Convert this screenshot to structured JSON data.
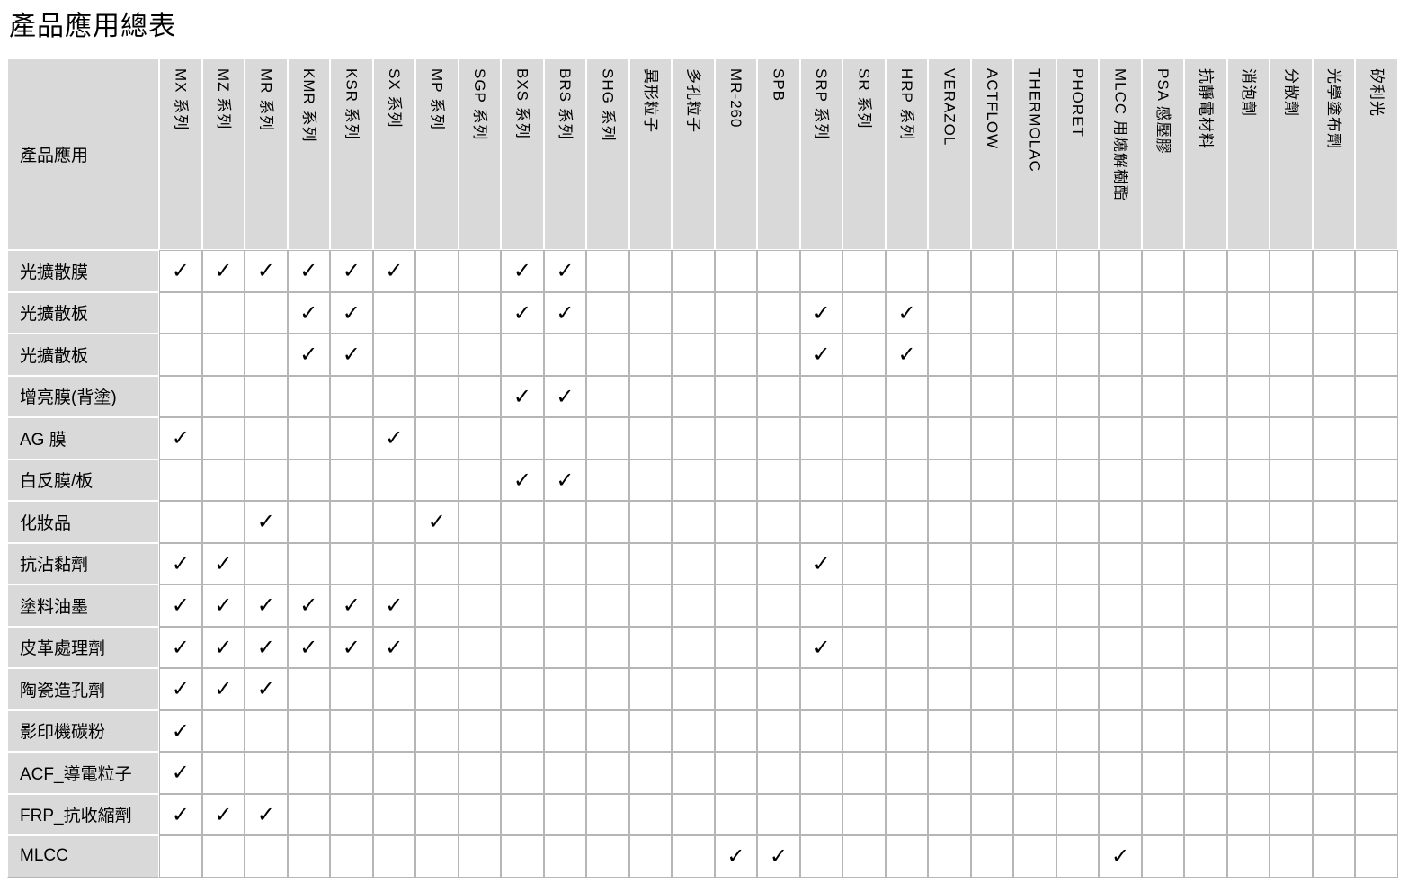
{
  "page": {
    "title": "產品應用總表"
  },
  "colors": {
    "header_bg": "#d9d9d9",
    "grid_border": "#b6b6b6",
    "header_border": "#ffffff",
    "text": "#000000"
  },
  "table": {
    "corner_header": "產品應用",
    "check_glyph": "✓",
    "columns": [
      "MX 系列",
      "MZ 系列",
      "MR 系列",
      "KMR 系列",
      "KSR 系列",
      "SX 系列",
      "MP 系列",
      "SGP 系列",
      "BXS 系列",
      "BRS 系列",
      "SHG 系列",
      "異形粒子",
      "多孔粒子",
      "MR-260",
      "SPB",
      "SRP 系列",
      "SR 系列",
      "HRP 系列",
      "VERAZOL",
      "ACTFLOW",
      "THERMOLAC",
      "PHORET",
      "MLCC 用燒解樹酯",
      "PSA 感壓膠",
      "抗靜電材料",
      "消泡劑",
      "分散劑",
      "光學塗布劑",
      "矽利光"
    ],
    "rows": [
      {
        "label": "光擴散膜",
        "checks": [
          0,
          1,
          2,
          3,
          4,
          5,
          8,
          9
        ]
      },
      {
        "label": "光擴散板",
        "checks": [
          3,
          4,
          8,
          9,
          15,
          17
        ]
      },
      {
        "label": "光擴散板",
        "checks": [
          3,
          4,
          15,
          17
        ]
      },
      {
        "label": "增亮膜(背塗)",
        "checks": [
          8,
          9
        ]
      },
      {
        "label": "AG 膜",
        "checks": [
          0,
          5
        ]
      },
      {
        "label": "白反膜/板",
        "checks": [
          8,
          9
        ]
      },
      {
        "label": "化妝品",
        "checks": [
          2,
          6
        ]
      },
      {
        "label": "抗沾黏劑",
        "checks": [
          0,
          1,
          15
        ]
      },
      {
        "label": "塗料油墨",
        "checks": [
          0,
          1,
          2,
          3,
          4,
          5
        ]
      },
      {
        "label": "皮革處理劑",
        "checks": [
          0,
          1,
          2,
          3,
          4,
          5,
          15
        ]
      },
      {
        "label": "陶瓷造孔劑",
        "checks": [
          0,
          1,
          2
        ]
      },
      {
        "label": "影印機碳粉",
        "checks": [
          0
        ]
      },
      {
        "label": "ACF_導電粒子",
        "checks": [
          0
        ]
      },
      {
        "label": "FRP_抗收縮劑",
        "checks": [
          0,
          1,
          2
        ]
      },
      {
        "label": "MLCC",
        "checks": [
          13,
          14,
          22
        ]
      }
    ]
  }
}
